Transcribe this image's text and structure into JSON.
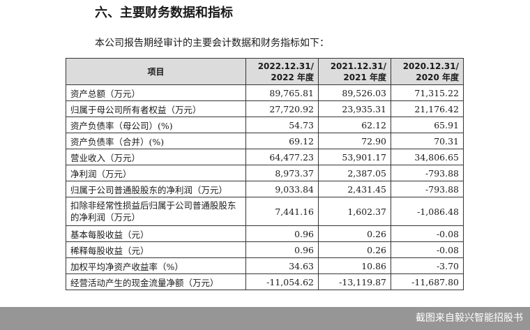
{
  "heading": "六、主要财务数据和指标",
  "intro": "本公司报告期经审计的主要会计数据和财务指标如下：",
  "table": {
    "header": {
      "item": "项目",
      "years": [
        {
          "line1": "2022.12.31/",
          "line2": "2022 年度"
        },
        {
          "line1": "2021.12.31/",
          "line2": "2021 年度"
        },
        {
          "line1": "2020.12.31/",
          "line2": "2020 年度"
        }
      ]
    },
    "rows": [
      {
        "label": "资产总额（万元）",
        "values": [
          "89,765.81",
          "89,526.03",
          "71,315.22"
        ]
      },
      {
        "label": "归属于母公司所有者权益（万元）",
        "values": [
          "27,720.92",
          "23,935.31",
          "21,176.42"
        ]
      },
      {
        "label": "资产负债率（母公司）(%)",
        "values": [
          "54.73",
          "62.12",
          "65.91"
        ]
      },
      {
        "label": "资产负债率（合并）(%)",
        "values": [
          "69.12",
          "72.90",
          "70.31"
        ]
      },
      {
        "label": "营业收入（万元）",
        "values": [
          "64,477.23",
          "53,901.17",
          "34,806.65"
        ]
      },
      {
        "label": "净利润（万元）",
        "values": [
          "8,973.37",
          "2,387.05",
          "-793.88"
        ]
      },
      {
        "label": "归属于公司普通股股东的净利润（万元）",
        "values": [
          "9,033.84",
          "2,431.45",
          "-793.88"
        ]
      },
      {
        "label": "扣除非经常性损益后归属于公司普通股股东的净利润（万元）",
        "values": [
          "7,441.16",
          "1,602.37",
          "-1,086.48"
        ]
      },
      {
        "label": "基本每股收益（元）",
        "values": [
          "0.96",
          "0.26",
          "-0.08"
        ]
      },
      {
        "label": "稀释每股收益（元）",
        "values": [
          "0.96",
          "0.26",
          "-0.08"
        ]
      },
      {
        "label": "加权平均净资产收益率（%）",
        "values": [
          "34.63",
          "10.86",
          "-3.70"
        ]
      },
      {
        "label": "经营活动产生的现金流量净额（万元）",
        "values": [
          "-11,054.62",
          "-13,119.87",
          "-11,687.80"
        ]
      }
    ]
  },
  "watermark": "截图来自毅兴智能招股书"
}
